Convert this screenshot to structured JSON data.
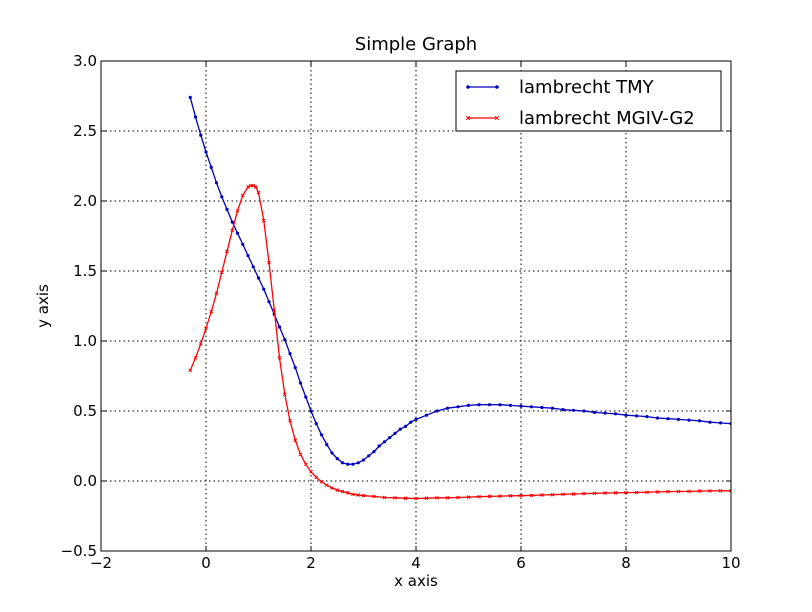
{
  "chart_data": {
    "type": "line",
    "title": "Simple Graph",
    "xlabel": "x axis",
    "ylabel": "y axis",
    "xlim": [
      -2,
      10
    ],
    "ylim": [
      -0.5,
      3.0
    ],
    "xticks": [
      -2,
      0,
      2,
      4,
      6,
      8,
      10
    ],
    "yticks": [
      -0.5,
      0.0,
      0.5,
      1.0,
      1.5,
      2.0,
      2.5,
      3.0
    ],
    "xtick_labels": [
      "−2",
      "0",
      "2",
      "4",
      "6",
      "8",
      "10"
    ],
    "ytick_labels": [
      "−0.5",
      "0.0",
      "0.5",
      "1.0",
      "1.5",
      "2.0",
      "2.5",
      "3.0"
    ],
    "grid": true,
    "legend_position": "top-right",
    "series": [
      {
        "name": "lambrecht TMY",
        "color": "#0000bf",
        "marker": "dot",
        "x": [
          -0.3,
          -0.2,
          -0.1,
          0.0,
          0.1,
          0.2,
          0.3,
          0.4,
          0.5,
          0.6,
          0.7,
          0.8,
          0.9,
          1.0,
          1.1,
          1.2,
          1.3,
          1.4,
          1.5,
          1.6,
          1.7,
          1.8,
          1.9,
          2.0,
          2.1,
          2.2,
          2.3,
          2.4,
          2.5,
          2.6,
          2.7,
          2.8,
          2.9,
          3.0,
          3.1,
          3.2,
          3.3,
          3.4,
          3.5,
          3.6,
          3.7,
          3.8,
          3.9,
          4.0,
          4.2,
          4.4,
          4.6,
          4.8,
          5.0,
          5.2,
          5.4,
          5.6,
          5.8,
          6.0,
          6.2,
          6.4,
          6.6,
          6.8,
          7.0,
          7.2,
          7.4,
          7.6,
          7.8,
          8.0,
          8.2,
          8.4,
          8.6,
          8.8,
          9.0,
          9.2,
          9.4,
          9.6,
          9.8,
          10.0
        ],
        "y": [
          2.74,
          2.6,
          2.47,
          2.35,
          2.24,
          2.13,
          2.03,
          1.94,
          1.85,
          1.77,
          1.69,
          1.61,
          1.53,
          1.45,
          1.37,
          1.28,
          1.19,
          1.1,
          1.01,
          0.91,
          0.81,
          0.7,
          0.6,
          0.5,
          0.41,
          0.33,
          0.26,
          0.2,
          0.16,
          0.13,
          0.12,
          0.12,
          0.13,
          0.15,
          0.18,
          0.21,
          0.25,
          0.28,
          0.31,
          0.34,
          0.37,
          0.39,
          0.42,
          0.44,
          0.47,
          0.5,
          0.52,
          0.53,
          0.54,
          0.545,
          0.545,
          0.545,
          0.54,
          0.535,
          0.53,
          0.525,
          0.52,
          0.51,
          0.505,
          0.5,
          0.49,
          0.485,
          0.48,
          0.47,
          0.465,
          0.46,
          0.45,
          0.445,
          0.44,
          0.435,
          0.43,
          0.42,
          0.415,
          0.41
        ]
      },
      {
        "name": "lambrecht MGIV-G2",
        "color": "#ff0000",
        "marker": "x",
        "x": [
          -0.3,
          -0.2,
          -0.1,
          0.0,
          0.1,
          0.2,
          0.3,
          0.4,
          0.5,
          0.6,
          0.7,
          0.8,
          0.85,
          0.9,
          0.95,
          1.0,
          1.1,
          1.2,
          1.3,
          1.4,
          1.5,
          1.6,
          1.7,
          1.8,
          1.9,
          2.0,
          2.1,
          2.2,
          2.3,
          2.4,
          2.5,
          2.6,
          2.7,
          2.8,
          2.9,
          3.0,
          3.2,
          3.4,
          3.6,
          3.8,
          4.0,
          4.2,
          4.4,
          4.6,
          4.8,
          5.0,
          5.2,
          5.4,
          5.6,
          5.8,
          6.0,
          6.2,
          6.4,
          6.6,
          6.8,
          7.0,
          7.2,
          7.4,
          7.6,
          7.8,
          8.0,
          8.2,
          8.4,
          8.6,
          8.8,
          9.0,
          9.2,
          9.4,
          9.6,
          9.8,
          10.0
        ],
        "y": [
          0.79,
          0.88,
          0.98,
          1.09,
          1.21,
          1.34,
          1.49,
          1.64,
          1.79,
          1.93,
          2.04,
          2.1,
          2.11,
          2.11,
          2.1,
          2.06,
          1.86,
          1.56,
          1.22,
          0.88,
          0.62,
          0.43,
          0.29,
          0.19,
          0.12,
          0.065,
          0.025,
          -0.005,
          -0.03,
          -0.05,
          -0.065,
          -0.075,
          -0.085,
          -0.095,
          -0.1,
          -0.105,
          -0.11,
          -0.118,
          -0.12,
          -0.123,
          -0.125,
          -0.123,
          -0.12,
          -0.12,
          -0.118,
          -0.115,
          -0.112,
          -0.11,
          -0.108,
          -0.106,
          -0.105,
          -0.103,
          -0.1,
          -0.098,
          -0.095,
          -0.093,
          -0.09,
          -0.088,
          -0.086,
          -0.085,
          -0.083,
          -0.082,
          -0.08,
          -0.078,
          -0.076,
          -0.075,
          -0.074,
          -0.072,
          -0.071,
          -0.07,
          -0.07
        ]
      }
    ]
  }
}
